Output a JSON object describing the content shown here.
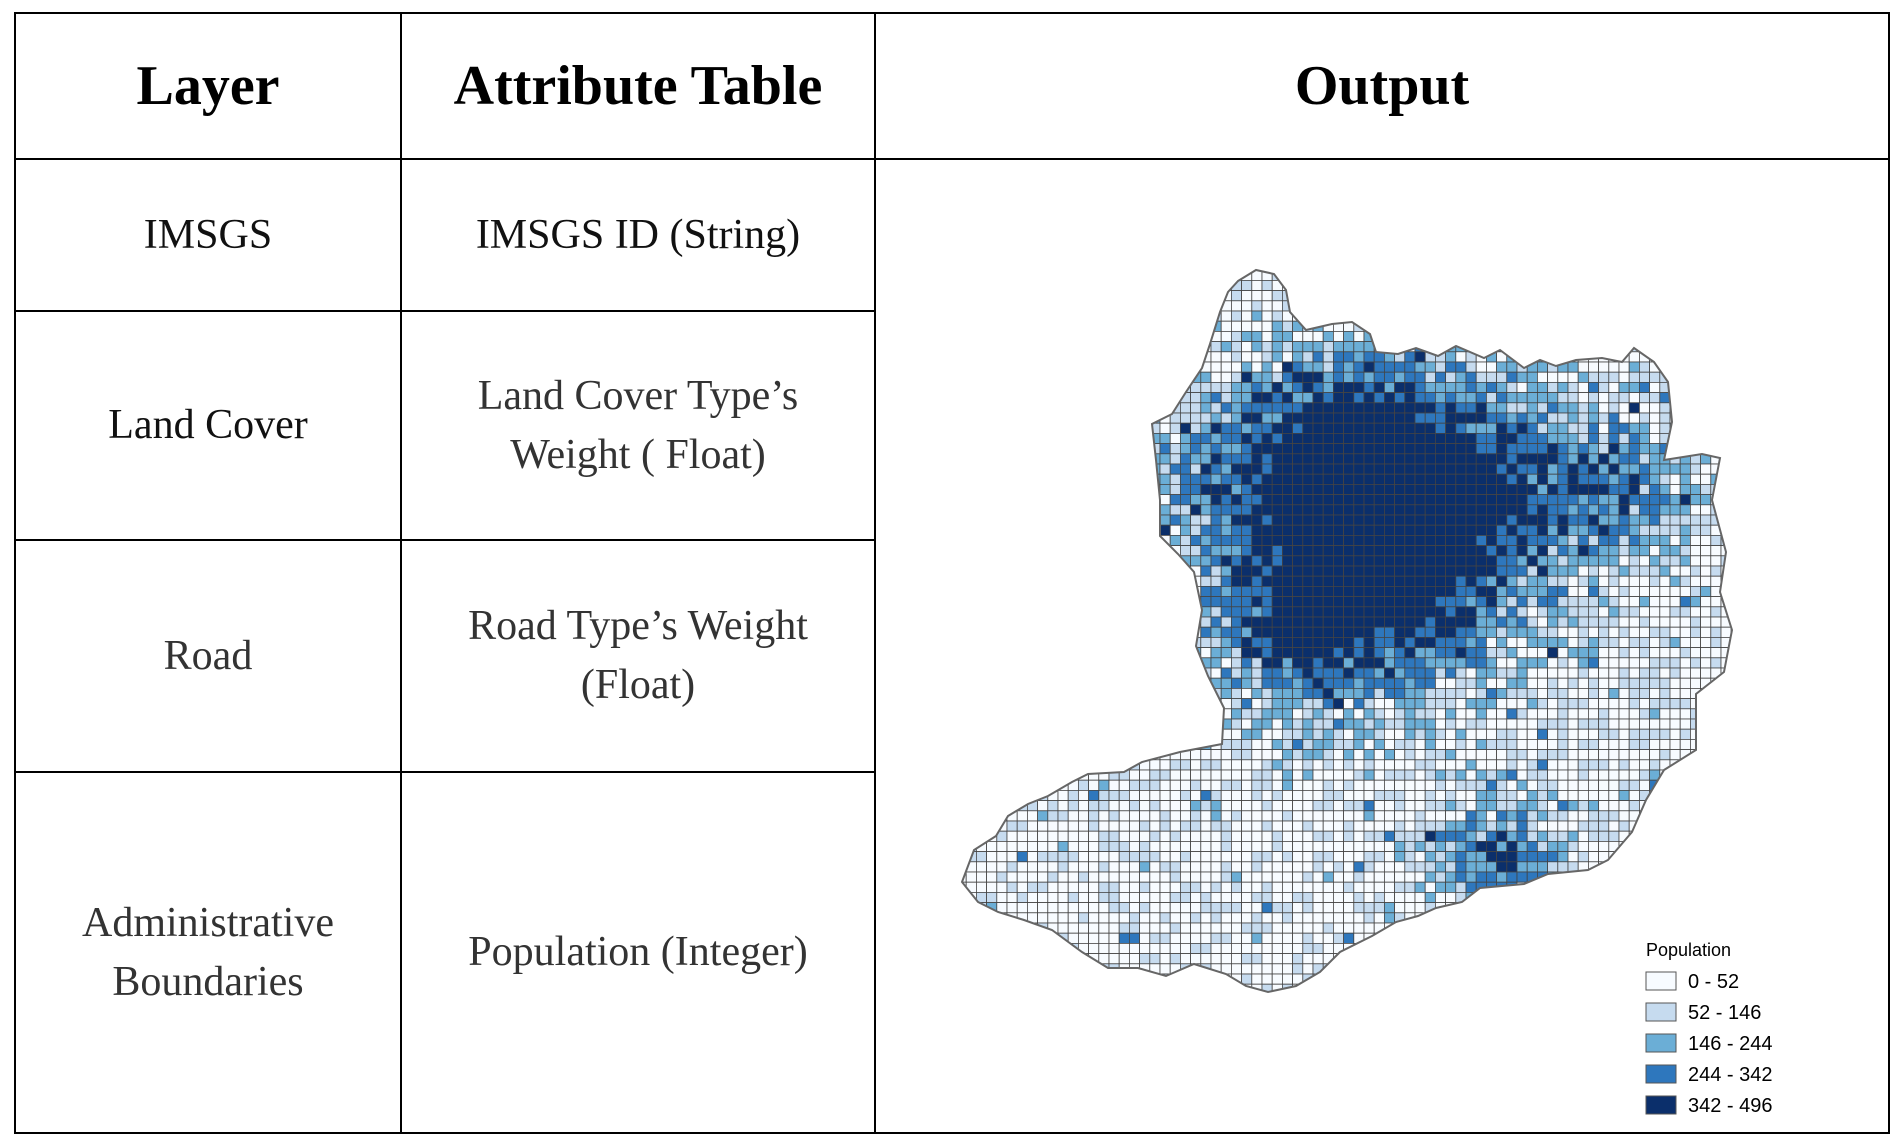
{
  "table": {
    "headers": [
      "Layer",
      "Attribute Table",
      "Output"
    ],
    "rows": [
      {
        "layer": "IMSGS",
        "attribute": "IMSGS ID (String)"
      },
      {
        "layer": "Land Cover",
        "attribute_line1": "Land Cover Type’s",
        "attribute_line2": "Weight ( Float)"
      },
      {
        "layer": "Road",
        "attribute_line1": "Road Type’s Weight",
        "attribute_line2": "(Float)"
      },
      {
        "layer_line1": "Administrative",
        "layer_line2": "Boundaries",
        "attribute": "Population (Integer)"
      }
    ]
  },
  "map": {
    "legend": {
      "title": "Population",
      "classes": [
        {
          "label": "0 - 52",
          "color": "#f7fbff"
        },
        {
          "label": "52 - 146",
          "color": "#c6dbef"
        },
        {
          "label": "146 - 244",
          "color": "#6baed6"
        },
        {
          "label": "244 - 342",
          "color": "#2e77bd"
        },
        {
          "label": "342 - 496",
          "color": "#0b2f6b"
        }
      ]
    },
    "grid_color": "#444444",
    "outline_color": "#666666"
  }
}
